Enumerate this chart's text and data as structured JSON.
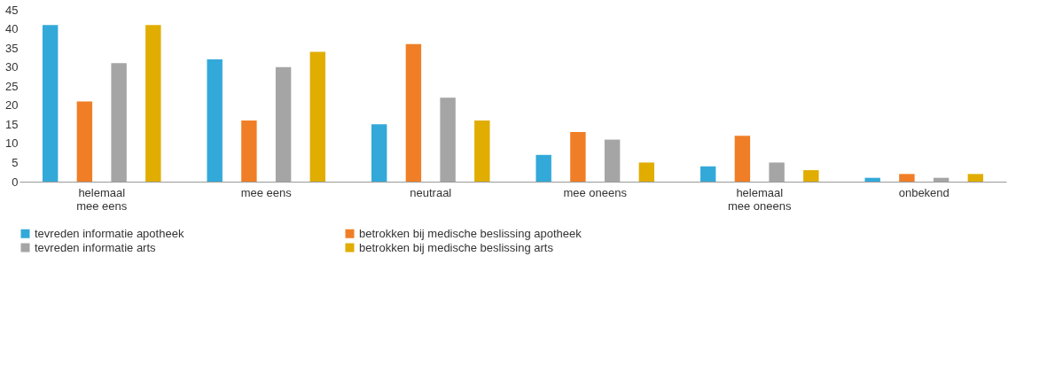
{
  "chart_data": {
    "type": "bar",
    "categories": [
      "helemaal\nmee eens",
      "mee eens",
      "neutraal",
      "mee oneens",
      "helemaal\nmee oneens",
      "onbekend"
    ],
    "series": [
      {
        "name": "tevreden informatie apotheek",
        "color": "#33a9d9",
        "values": [
          41,
          32,
          15,
          7,
          4,
          1
        ]
      },
      {
        "name": "betrokken bij medische beslissing apotheek",
        "color": "#f07e26",
        "values": [
          21,
          16,
          36,
          13,
          12,
          2
        ]
      },
      {
        "name": "tevreden informatie arts",
        "color": "#a5a5a5",
        "values": [
          31,
          30,
          22,
          11,
          5,
          1
        ]
      },
      {
        "name": "betrokken bij medische beslissing arts",
        "color": "#e0ad00",
        "values": [
          41,
          34,
          16,
          5,
          3,
          2
        ]
      }
    ],
    "ylim": [
      0,
      45
    ],
    "yticks": [
      0,
      5,
      10,
      15,
      20,
      25,
      30,
      35,
      40,
      45
    ],
    "grid": false,
    "legend": "bottom left"
  }
}
